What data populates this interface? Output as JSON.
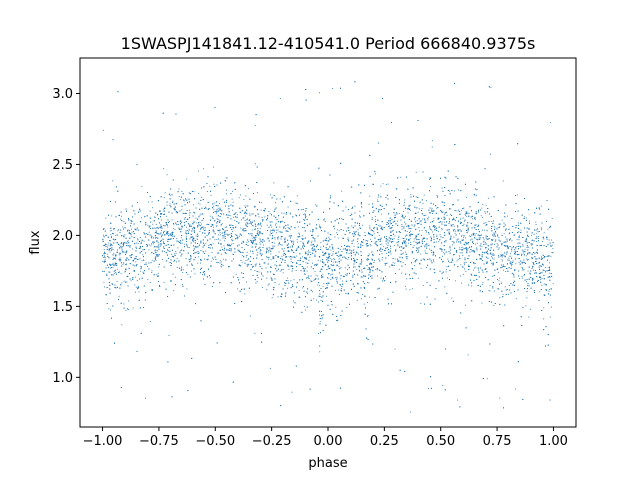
{
  "chart_data": {
    "type": "scatter",
    "title": "1SWASPJ141841.12-410541.0 Period 666840.9375s",
    "xlabel": "phase",
    "ylabel": "flux",
    "xlim": [
      -1.1,
      1.1
    ],
    "ylim": [
      0.65,
      3.25
    ],
    "xticks": [
      -1.0,
      -0.75,
      -0.5,
      -0.25,
      0.0,
      0.25,
      0.5,
      0.75,
      1.0
    ],
    "xtick_labels": [
      "−1.00",
      "−0.75",
      "−0.50",
      "−0.25",
      "0.00",
      "0.25",
      "0.50",
      "0.75",
      "1.00"
    ],
    "yticks": [
      1.0,
      1.5,
      2.0,
      2.5,
      3.0
    ],
    "ytick_labels": [
      "1.0",
      "1.5",
      "2.0",
      "2.5",
      "3.0"
    ],
    "grid": false,
    "legend": "none",
    "marker_color": "#1f77b4",
    "data_range": {
      "x": [
        -1.0,
        1.0
      ],
      "y": [
        0.75,
        3.1
      ]
    },
    "series": [
      {
        "values_description_points": [
          {
            "x": -1.0,
            "y": 1.85
          },
          {
            "x": -0.95,
            "y": 1.83
          },
          {
            "x": -0.9,
            "y": 1.86
          },
          {
            "x": -0.85,
            "y": 1.93
          },
          {
            "x": -0.8,
            "y": 1.97
          },
          {
            "x": -0.75,
            "y": 1.98
          },
          {
            "x": -0.7,
            "y": 2.0
          },
          {
            "x": -0.65,
            "y": 2.0
          },
          {
            "x": -0.6,
            "y": 2.0
          },
          {
            "x": -0.55,
            "y": 2.02
          },
          {
            "x": -0.5,
            "y": 2.02
          },
          {
            "x": -0.45,
            "y": 2.0
          },
          {
            "x": -0.4,
            "y": 1.98
          },
          {
            "x": -0.35,
            "y": 1.97
          },
          {
            "x": -0.3,
            "y": 1.93
          },
          {
            "x": -0.25,
            "y": 1.9
          },
          {
            "x": -0.2,
            "y": 1.88
          },
          {
            "x": -0.15,
            "y": 1.86
          },
          {
            "x": -0.1,
            "y": 1.86
          },
          {
            "x": -0.05,
            "y": 1.85
          },
          {
            "x": 0.0,
            "y": 1.85
          },
          {
            "x": 0.05,
            "y": 1.83
          },
          {
            "x": 0.1,
            "y": 1.86
          },
          {
            "x": 0.15,
            "y": 1.93
          },
          {
            "x": 0.2,
            "y": 1.97
          },
          {
            "x": 0.25,
            "y": 1.98
          },
          {
            "x": 0.3,
            "y": 2.0
          },
          {
            "x": 0.35,
            "y": 2.0
          },
          {
            "x": 0.4,
            "y": 2.0
          },
          {
            "x": 0.45,
            "y": 2.02
          },
          {
            "x": 0.5,
            "y": 2.02
          },
          {
            "x": 0.55,
            "y": 2.0
          },
          {
            "x": 0.6,
            "y": 1.98
          },
          {
            "x": 0.65,
            "y": 1.97
          },
          {
            "x": 0.7,
            "y": 1.93
          },
          {
            "x": 0.75,
            "y": 1.9
          },
          {
            "x": 0.8,
            "y": 1.88
          },
          {
            "x": 0.85,
            "y": 1.86
          },
          {
            "x": 0.9,
            "y": 1.86
          },
          {
            "x": 0.95,
            "y": 1.85
          },
          {
            "x": 1.0,
            "y": 1.85
          }
        ],
        "scatter_sd": 0.17,
        "dip_phases": [
          -0.83,
          -0.03,
          0.17,
          0.97
        ],
        "dip_y": 1.55
      }
    ]
  }
}
